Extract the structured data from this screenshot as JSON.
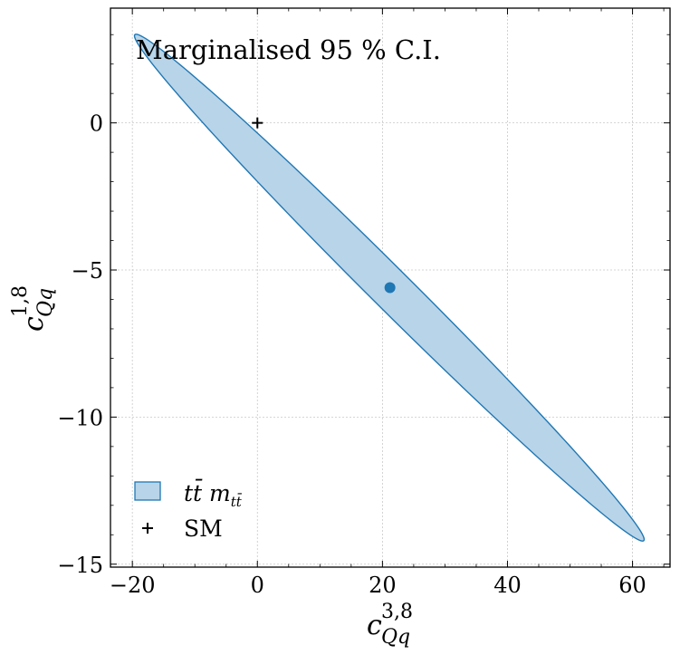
{
  "chart_data": {
    "type": "contour",
    "annotation": "Marginalised 95 % C.I.",
    "xlabel": {
      "base": "c",
      "sup": "3,8",
      "sub": "Qq"
    },
    "ylabel": {
      "base": "c",
      "sup": "1,8",
      "sub": "Qq"
    },
    "xlim": [
      -23.5,
      66
    ],
    "ylim": [
      -15.1,
      3.9
    ],
    "xticks": [
      -20,
      0,
      20,
      40,
      60
    ],
    "yticks": [
      -15,
      -10,
      -5,
      0
    ],
    "xtick_labels": [
      "−20",
      "0",
      "20",
      "40",
      "60"
    ],
    "ytick_labels": [
      "−15",
      "−10",
      "−5",
      "0"
    ],
    "grid": true,
    "legend_position": "lower-left",
    "ellipse": {
      "name": "tt̄ m_tt̄",
      "center": [
        21.2,
        -5.6
      ],
      "endpoint_upper": [
        -19.6,
        3.0
      ],
      "endpoint_lower": [
        61.8,
        -14.2
      ],
      "half_width_data": 0.9,
      "fill_color": "#b8d4e8",
      "edge_color": "#1f77b4"
    },
    "best_fit": {
      "x": 21.2,
      "y": -5.6,
      "color": "#1f77b4"
    },
    "sm_point": {
      "x": 0,
      "y": 0,
      "label": "SM"
    },
    "legend": [
      {
        "kind": "patch",
        "label_parts": [
          "tt̄",
          " m",
          "tt̄"
        ]
      },
      {
        "kind": "marker",
        "label": "SM"
      }
    ]
  }
}
